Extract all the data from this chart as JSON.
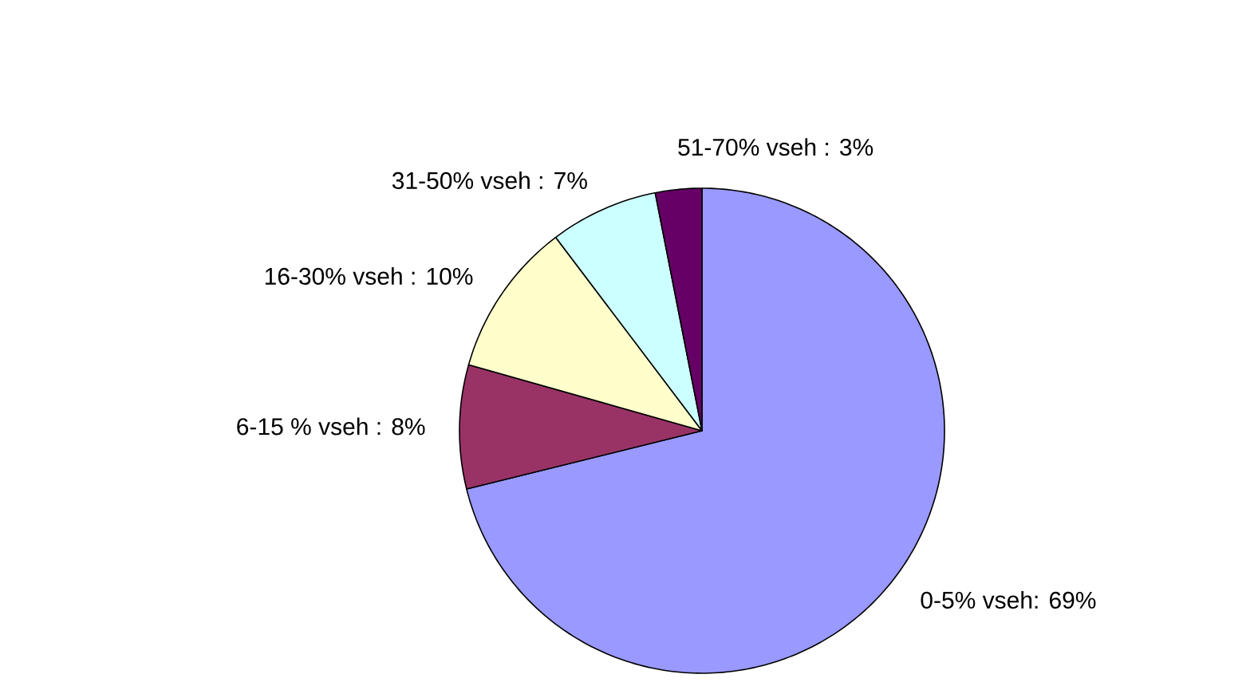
{
  "chart_data": {
    "type": "pie",
    "categories": [
      "0-5% vseh: 69%",
      "6-15 % vseh : 8%",
      "16-30% vseh : 10%",
      "31-50% vseh : 7%",
      "51-70% vseh : 3%"
    ],
    "values": [
      69,
      8,
      10,
      7,
      3
    ],
    "colors": [
      "#9999ff",
      "#993366",
      "#ffffcc",
      "#ccffff",
      "#660066"
    ]
  }
}
